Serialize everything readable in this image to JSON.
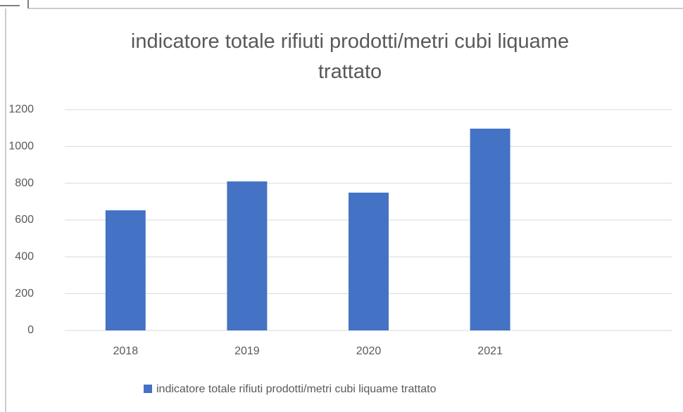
{
  "chart_data": {
    "type": "bar",
    "title": "indicatore totale rifiuti prodotti/metri cubi liquame trattato",
    "categories": [
      "2018",
      "2019",
      "2020",
      "2021",
      null
    ],
    "series": [
      {
        "name": "indicatore totale rifiuti prodotti/metri cubi liquame trattato",
        "color": "#4472c4",
        "values": [
          653,
          810,
          749,
          1097,
          null
        ]
      }
    ],
    "ylim": [
      0,
      1200
    ],
    "yticks": [
      0,
      200,
      400,
      600,
      800,
      1000,
      1200
    ],
    "grid": true,
    "legend": "bottom"
  }
}
